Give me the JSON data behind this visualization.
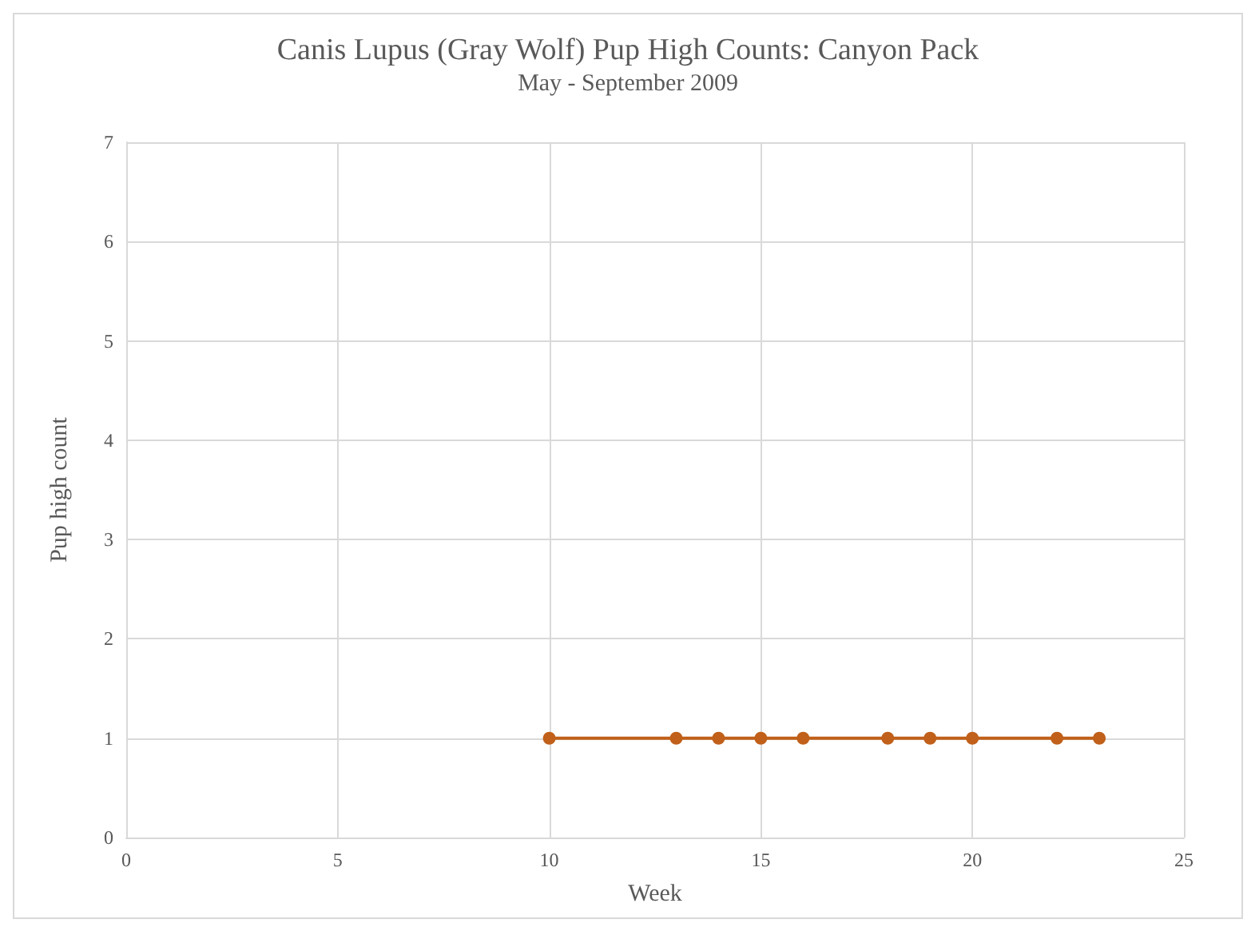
{
  "chart_data": {
    "type": "line",
    "title": "Canis Lupus (Gray Wolf) Pup High Counts: Canyon Pack",
    "subtitle": "May - September 2009",
    "xlabel": "Week",
    "ylabel": "Pup high count",
    "x": [
      10,
      13,
      14,
      15,
      16,
      18,
      19,
      20,
      22,
      23
    ],
    "series": [
      {
        "color": "#c0601a",
        "values": [
          1,
          1,
          1,
          1,
          1,
          1,
          1,
          1,
          1,
          1
        ]
      }
    ],
    "xlim": [
      0,
      25
    ],
    "xticks": [
      0,
      5,
      10,
      15,
      20,
      25
    ],
    "ylim": [
      0,
      7
    ],
    "yticks": [
      0,
      1,
      2,
      3,
      4,
      5,
      6,
      7
    ],
    "grid": true,
    "marker": "circle",
    "line_style": "solid"
  }
}
